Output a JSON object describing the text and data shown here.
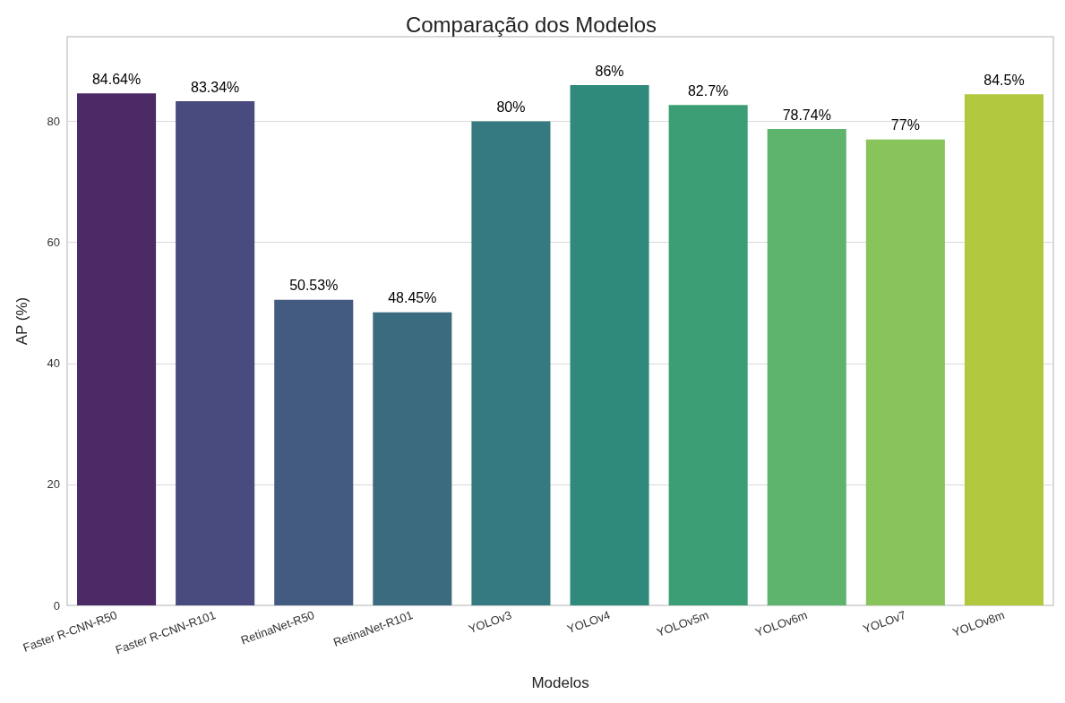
{
  "chart_data": {
    "type": "bar",
    "title": "Comparação dos Modelos",
    "xlabel": "Modelos",
    "ylabel": "AP (%)",
    "categories": [
      "Faster R-CNN-R50",
      "Faster R-CNN-R101",
      "RetinaNet-R50",
      "RetinaNet-R101",
      "YOLOv3",
      "YOLOv4",
      "YOLOv5m",
      "YOLOv6m",
      "YOLOv7",
      "YOLOv8m"
    ],
    "values": [
      84.64,
      83.34,
      50.53,
      48.45,
      80,
      86,
      82.7,
      78.74,
      77,
      84.5
    ],
    "value_labels": [
      "84.64%",
      "83.34%",
      "50.53%",
      "48.45%",
      "80%",
      "86%",
      "82.7%",
      "78.74%",
      "77%",
      "84.5%"
    ],
    "colors": [
      "#4b2a66",
      "#494a7e",
      "#435a81",
      "#3a6b7f",
      "#347a80",
      "#2f8a7b",
      "#3c9e74",
      "#5eb46c",
      "#89c35b",
      "#b0c73e"
    ],
    "ylim": [
      0,
      94
    ],
    "yticks": [
      0,
      20,
      40,
      60,
      80
    ],
    "grid": "y"
  }
}
